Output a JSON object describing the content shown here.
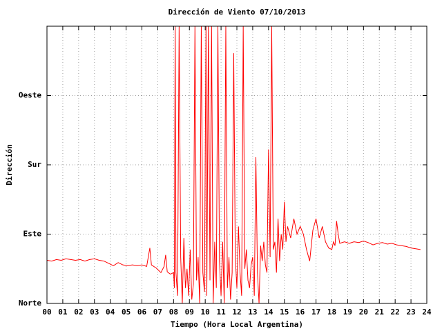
{
  "chart_data": {
    "type": "line",
    "title": "Dirección de Viento 07/10/2013",
    "x_label": "Tiempo (Hora Local Argentina)",
    "y_label": "Dirección",
    "xlim": [
      0,
      24
    ],
    "ylim": [
      0,
      360
    ],
    "xticks": [
      {
        "value": 0,
        "label": "00"
      },
      {
        "value": 1,
        "label": "01"
      },
      {
        "value": 2,
        "label": "02"
      },
      {
        "value": 3,
        "label": "03"
      },
      {
        "value": 4,
        "label": "04"
      },
      {
        "value": 5,
        "label": "05"
      },
      {
        "value": 6,
        "label": "06"
      },
      {
        "value": 7,
        "label": "07"
      },
      {
        "value": 8,
        "label": "08"
      },
      {
        "value": 9,
        "label": "09"
      },
      10,
      11,
      12,
      13,
      14,
      15,
      16,
      17,
      18,
      19,
      20,
      21,
      22,
      23,
      24
    ],
    "yticks": [
      {
        "value": 0,
        "label": "Norte"
      },
      {
        "value": 90,
        "label": "Este"
      },
      {
        "value": 180,
        "label": "Sur"
      },
      {
        "value": 270,
        "label": "Oeste"
      }
    ],
    "grid": true,
    "x": [
      0,
      0.3,
      0.6,
      0.9,
      1.2,
      1.5,
      1.8,
      2.1,
      2.4,
      2.7,
      3.0,
      3.3,
      3.6,
      3.9,
      4.2,
      4.5,
      4.8,
      5.1,
      5.4,
      5.7,
      6.0,
      6.3,
      6.5,
      6.6,
      6.9,
      7.2,
      7.4,
      7.5,
      7.6,
      7.8,
      8.0,
      8.05,
      8.1,
      8.15,
      8.25,
      8.35,
      8.45,
      8.55,
      8.65,
      8.75,
      8.85,
      8.95,
      9.05,
      9.15,
      9.25,
      9.35,
      9.45,
      9.55,
      9.65,
      9.75,
      9.85,
      9.95,
      10.05,
      10.1,
      10.2,
      10.3,
      10.4,
      10.5,
      10.6,
      10.7,
      10.8,
      10.9,
      11.0,
      11.1,
      11.2,
      11.3,
      11.4,
      11.5,
      11.6,
      11.7,
      11.8,
      11.9,
      12.0,
      12.1,
      12.2,
      12.3,
      12.4,
      12.5,
      12.6,
      12.7,
      12.8,
      12.9,
      13.0,
      13.1,
      13.2,
      13.3,
      13.4,
      13.5,
      13.6,
      13.7,
      13.8,
      13.9,
      14.0,
      14.1,
      14.2,
      14.3,
      14.4,
      14.5,
      14.6,
      14.7,
      14.8,
      14.9,
      15.0,
      15.1,
      15.2,
      15.4,
      15.6,
      15.8,
      16.0,
      16.2,
      16.4,
      16.6,
      16.8,
      17.0,
      17.2,
      17.4,
      17.6,
      17.8,
      18.0,
      18.1,
      18.2,
      18.3,
      18.4,
      18.5,
      18.8,
      19.1,
      19.4,
      19.7,
      20.0,
      20.3,
      20.6,
      20.9,
      21.2,
      21.5,
      21.8,
      22.1,
      22.4,
      22.7,
      23.0,
      23.3,
      23.6
    ],
    "series": [
      {
        "color": "#ff0000",
        "values": [
          56,
          55,
          57,
          56,
          58,
          57,
          56,
          57,
          55,
          57,
          58,
          56,
          55,
          52,
          49,
          53,
          50,
          49,
          50,
          49,
          50,
          48,
          72,
          50,
          46,
          40,
          48,
          63,
          41,
          38,
          40,
          20,
          360,
          40,
          10,
          360,
          60,
          0,
          85,
          20,
          45,
          10,
          70,
          5,
          25,
          360,
          30,
          60,
          0,
          360,
          40,
          15,
          360,
          10,
          360,
          30,
          360,
          0,
          80,
          20,
          360,
          55,
          10,
          80,
          0,
          360,
          20,
          60,
          5,
          40,
          325,
          60,
          20,
          100,
          40,
          10,
          360,
          45,
          70,
          30,
          20,
          50,
          60,
          10,
          190,
          40,
          0,
          75,
          55,
          80,
          50,
          40,
          200,
          60,
          360,
          70,
          80,
          40,
          110,
          55,
          90,
          70,
          132,
          80,
          100,
          85,
          110,
          90,
          100,
          90,
          70,
          55,
          95,
          110,
          85,
          100,
          80,
          72,
          70,
          80,
          75,
          107,
          90,
          78,
          80,
          78,
          80,
          79,
          81,
          79,
          76,
          78,
          79,
          77,
          78,
          76,
          75,
          74,
          72,
          71,
          70
        ]
      }
    ]
  }
}
